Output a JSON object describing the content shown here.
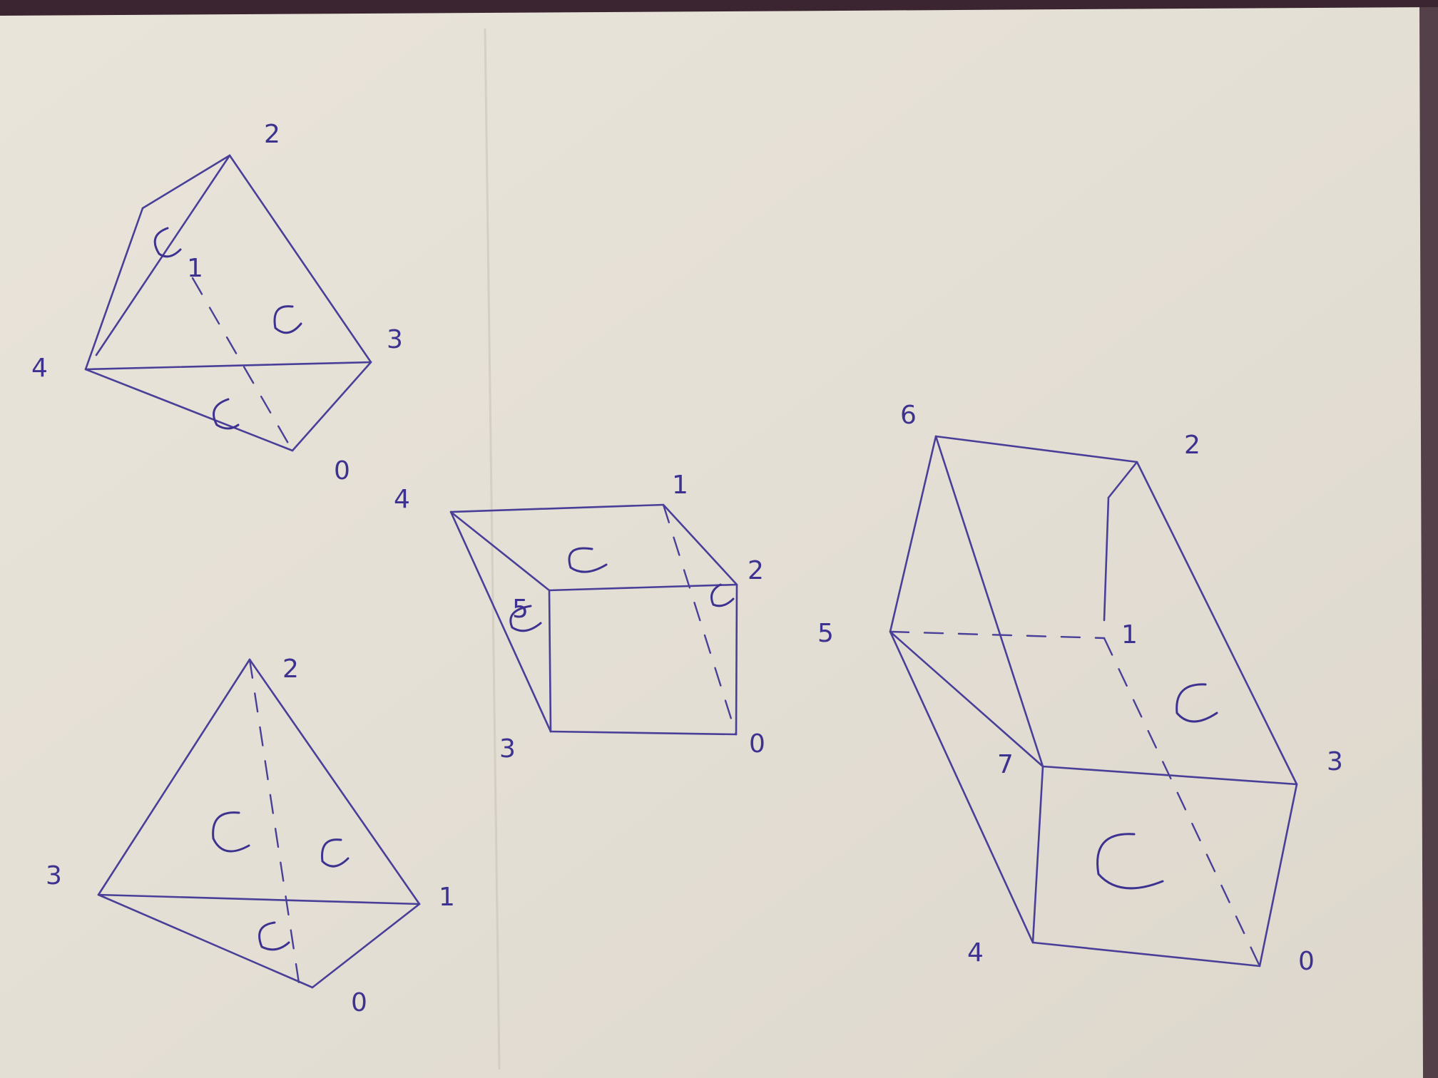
{
  "photo": {
    "colors": {
      "paper": "#e6e1d8",
      "ink": "#4a3f98",
      "background": "#3a2530"
    }
  },
  "sketches": {
    "tetrahedron_top": {
      "labels": [
        "0",
        "1",
        "2",
        "3",
        "4"
      ]
    },
    "tetrahedron_bottom": {
      "labels": [
        "0",
        "1",
        "2",
        "3"
      ]
    },
    "cube_small": {
      "labels": [
        "0",
        "1",
        "2",
        "3",
        "4",
        "5"
      ]
    },
    "prism_large": {
      "labels": [
        "0",
        "1",
        "2",
        "3",
        "4",
        "5",
        "6",
        "7"
      ]
    }
  }
}
